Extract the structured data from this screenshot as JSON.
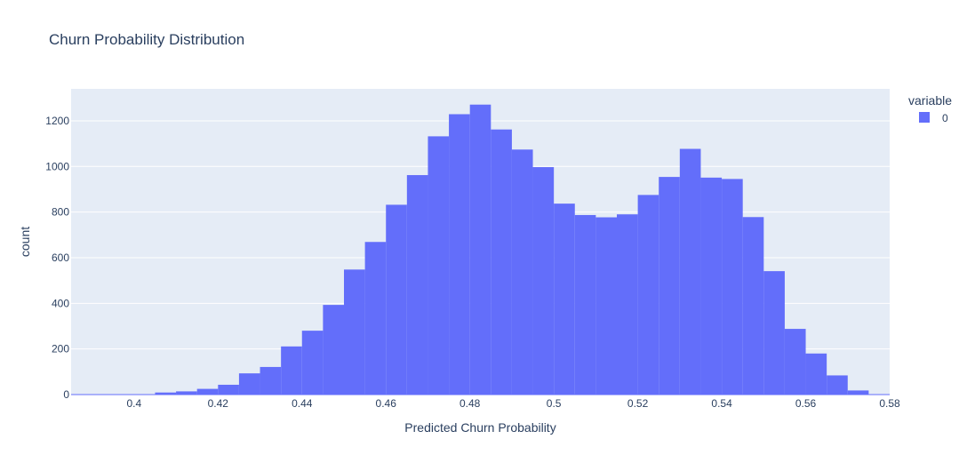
{
  "chart_data": {
    "type": "bar",
    "title": "Churn Probability Distribution",
    "xlabel": "Predicted Churn Probability",
    "ylabel": "count",
    "xlim": [
      0.385,
      0.58
    ],
    "ylim": [
      0,
      1340
    ],
    "x_ticks": [
      0.4,
      0.42,
      0.44,
      0.46,
      0.48,
      0.5,
      0.52,
      0.54,
      0.56,
      0.58
    ],
    "x_tick_labels": [
      "0.4",
      "0.42",
      "0.44",
      "0.46",
      "0.48",
      "0.5",
      "0.52",
      "0.54",
      "0.56",
      "0.58"
    ],
    "y_ticks": [
      0,
      200,
      400,
      600,
      800,
      1000,
      1200
    ],
    "y_tick_labels": [
      "0",
      "200",
      "400",
      "600",
      "800",
      "1000",
      "1200"
    ],
    "bin_width": 0.005,
    "bins": [
      {
        "start": 0.385,
        "count": 0
      },
      {
        "start": 0.39,
        "count": 0
      },
      {
        "start": 0.395,
        "count": 0
      },
      {
        "start": 0.4,
        "count": 1
      },
      {
        "start": 0.405,
        "count": 9
      },
      {
        "start": 0.41,
        "count": 14
      },
      {
        "start": 0.415,
        "count": 25
      },
      {
        "start": 0.42,
        "count": 43
      },
      {
        "start": 0.425,
        "count": 93
      },
      {
        "start": 0.43,
        "count": 121
      },
      {
        "start": 0.435,
        "count": 211
      },
      {
        "start": 0.44,
        "count": 280
      },
      {
        "start": 0.445,
        "count": 393
      },
      {
        "start": 0.45,
        "count": 548
      },
      {
        "start": 0.455,
        "count": 669
      },
      {
        "start": 0.46,
        "count": 832
      },
      {
        "start": 0.465,
        "count": 962
      },
      {
        "start": 0.47,
        "count": 1132
      },
      {
        "start": 0.475,
        "count": 1229
      },
      {
        "start": 0.48,
        "count": 1271
      },
      {
        "start": 0.485,
        "count": 1162
      },
      {
        "start": 0.49,
        "count": 1074
      },
      {
        "start": 0.495,
        "count": 997
      },
      {
        "start": 0.5,
        "count": 837
      },
      {
        "start": 0.505,
        "count": 787
      },
      {
        "start": 0.51,
        "count": 777
      },
      {
        "start": 0.515,
        "count": 790
      },
      {
        "start": 0.52,
        "count": 875
      },
      {
        "start": 0.525,
        "count": 954
      },
      {
        "start": 0.53,
        "count": 1077
      },
      {
        "start": 0.535,
        "count": 951
      },
      {
        "start": 0.54,
        "count": 945
      },
      {
        "start": 0.545,
        "count": 778
      },
      {
        "start": 0.55,
        "count": 541
      },
      {
        "start": 0.555,
        "count": 288
      },
      {
        "start": 0.56,
        "count": 180
      },
      {
        "start": 0.565,
        "count": 84
      },
      {
        "start": 0.57,
        "count": 18
      },
      {
        "start": 0.575,
        "count": 1
      }
    ],
    "series": [
      {
        "name": "0",
        "color": "#636efa"
      }
    ],
    "legend": {
      "title": "variable",
      "position": "top-right"
    },
    "grid": true,
    "colors": {
      "plot_background": "#e5ecf6",
      "gridline": "#ffffff",
      "bar": "#636efa",
      "text": "#2a3f5f"
    }
  }
}
